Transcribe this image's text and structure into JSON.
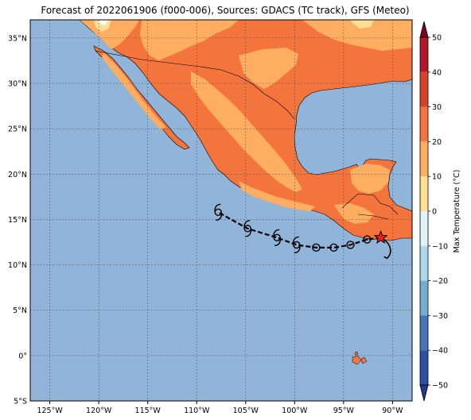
{
  "title": "Forecast of 2022061906 (f000-006), Sources: GDACS (TC track), GFS (Meteo)",
  "map": {
    "lon_range": [
      -127,
      -88
    ],
    "lat_range": [
      -5,
      37
    ],
    "lon_ticks": [
      -125,
      -120,
      -115,
      -110,
      -105,
      -100,
      -95,
      -90
    ],
    "lon_labels": [
      "125°W",
      "120°W",
      "115°W",
      "110°W",
      "105°W",
      "100°W",
      "95°W",
      "90°W"
    ],
    "lat_ticks": [
      35,
      30,
      25,
      20,
      15,
      10,
      5,
      0,
      -5
    ],
    "lat_labels": [
      "35°N",
      "30°N",
      "25°N",
      "20°N",
      "15°N",
      "10°N",
      "5°N",
      "0°",
      "5°S"
    ],
    "ocean_color": "#91b4d9"
  },
  "track": {
    "points": [
      {
        "lon": -91.2,
        "lat": 13.0,
        "symbol": "star"
      },
      {
        "lon": -92.6,
        "lat": 12.8,
        "symbol": "circle-dot"
      },
      {
        "lon": -94.3,
        "lat": 12.2,
        "symbol": "circle"
      },
      {
        "lon": -96.0,
        "lat": 11.9,
        "symbol": "circle"
      },
      {
        "lon": -97.8,
        "lat": 11.9,
        "symbol": "circle"
      },
      {
        "lon": -99.8,
        "lat": 12.2,
        "symbol": "hurricane"
      },
      {
        "lon": -101.8,
        "lat": 13.0,
        "symbol": "hurricane"
      },
      {
        "lon": -104.8,
        "lat": 14.0,
        "symbol": "hurricane"
      },
      {
        "lon": -107.8,
        "lat": 15.8,
        "symbol": "hurricane"
      }
    ]
  },
  "colorbar": {
    "label": "Max Temperature (°C)",
    "ticks": [
      "50",
      "40",
      "30",
      "20",
      "10",
      "0",
      "−10",
      "−20",
      "−30",
      "−40",
      "−50"
    ],
    "colors": [
      "#7f0023",
      "#b2182b",
      "#d6432b",
      "#f4743e",
      "#fdae61",
      "#fee090",
      "#e0f3f8",
      "#abd9e9",
      "#74add1",
      "#4575b4",
      "#2c4fa3",
      "#283593"
    ]
  }
}
